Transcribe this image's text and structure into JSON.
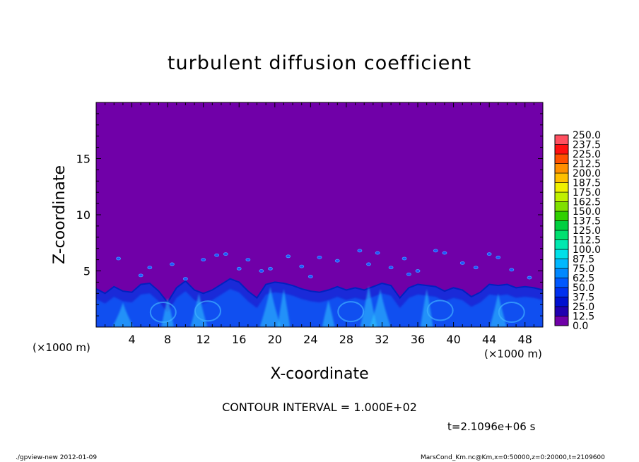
{
  "chart_data": {
    "type": "heatmap",
    "title": "turbulent diffusion coefficient",
    "xlabel": "X-coordinate",
    "ylabel": "Z-coordinate",
    "x_unit": "(×1000 m)",
    "x_ticks": [
      4,
      8,
      12,
      16,
      20,
      24,
      28,
      32,
      36,
      40,
      44,
      48
    ],
    "y_ticks": [
      5,
      10,
      15
    ],
    "xlim": [
      0,
      50
    ],
    "ylim": [
      0,
      20
    ],
    "contour_interval": "CONTOUR INTERVAL = 1.000E+02",
    "time": "t=2.1096e+06 s",
    "colorbar": {
      "levels": [
        "0.0",
        "12.5",
        "25.0",
        "37.5",
        "50.0",
        "62.5",
        "75.0",
        "87.5",
        "100.0",
        "112.5",
        "125.0",
        "137.5",
        "150.0",
        "162.5",
        "175.0",
        "187.5",
        "200.0",
        "212.5",
        "225.0",
        "237.5",
        "250.0"
      ],
      "colors": [
        "#7000a8",
        "#2000b0",
        "#0010d0",
        "#0030f0",
        "#0058ff",
        "#0088ff",
        "#00b8ff",
        "#00e0e8",
        "#00e8b0",
        "#00e070",
        "#00d040",
        "#30d000",
        "#80e000",
        "#c0f000",
        "#f0f000",
        "#ffc000",
        "#ff9000",
        "#ff5000",
        "#ff1010",
        "#ff5060",
        "#ff9090"
      ]
    },
    "field": {
      "background_level": "0.0",
      "boundary_layer_top_km": [
        3.4,
        3.0,
        3.6,
        3.2,
        3.1,
        3.8,
        3.9,
        3.2,
        2.2,
        3.5,
        4.1,
        3.3,
        3.0,
        3.3,
        3.8,
        4.3,
        4.0,
        3.2,
        2.6,
        3.8,
        4.0,
        3.9,
        3.7,
        3.4,
        3.2,
        3.1,
        3.3,
        3.6,
        3.3,
        3.5,
        3.3,
        3.6,
        3.9,
        3.7,
        2.6,
        3.5,
        3.8,
        3.7,
        3.6,
        3.2,
        3.5,
        3.3,
        2.7,
        3.1,
        3.8,
        3.7,
        3.8,
        3.5,
        3.6,
        3.5,
        3.3
      ]
    }
  },
  "footer": {
    "left": "./gpview-new   2012-01-09",
    "right": "MarsCond_Km.nc@Km,x=0:50000,z=0:20000,t=2109600"
  }
}
